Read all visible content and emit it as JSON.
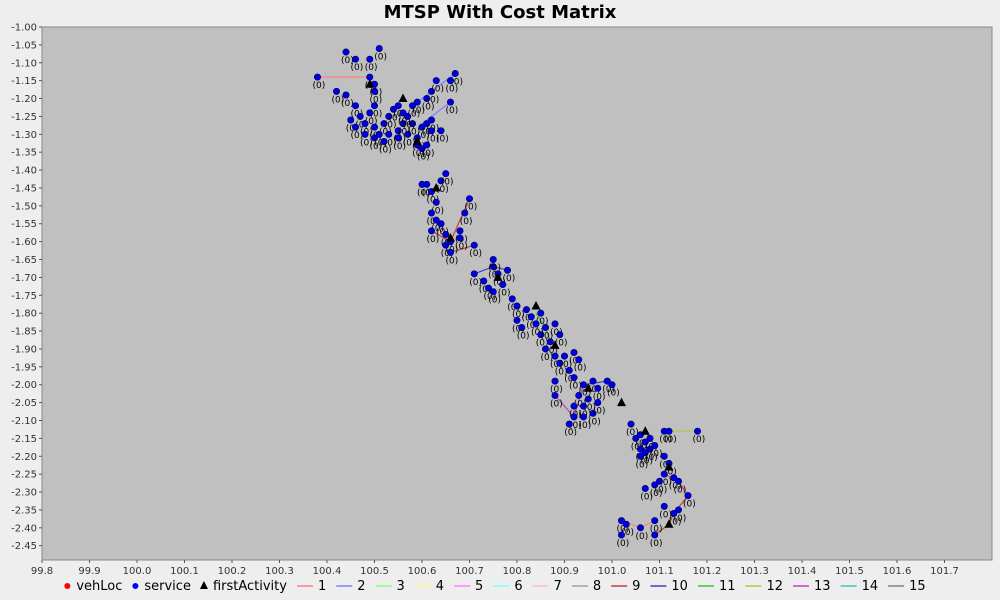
{
  "chart_data": {
    "type": "scatter",
    "title": "MTSP With Cost Matrix",
    "xlabel": "",
    "ylabel": "",
    "xlim": [
      99.8,
      101.8
    ],
    "ylim": [
      -2.49,
      -1.0
    ],
    "x_ticks": [
      "99.8",
      "99.9",
      "100.0",
      "100.1",
      "100.2",
      "100.3",
      "100.4",
      "100.5",
      "100.6",
      "100.7",
      "100.8",
      "100.9",
      "101.0",
      "101.1",
      "101.2",
      "101.3",
      "101.4",
      "101.5",
      "101.6",
      "101.7"
    ],
    "y_ticks": [
      "-1.00",
      "-1.05",
      "-1.10",
      "-1.15",
      "-1.20",
      "-1.25",
      "-1.30",
      "-1.35",
      "-1.40",
      "-1.45",
      "-1.50",
      "-1.55",
      "-1.60",
      "-1.65",
      "-1.70",
      "-1.75",
      "-1.80",
      "-1.85",
      "-1.90",
      "-1.95",
      "-2.00",
      "-2.05",
      "-2.10",
      "-2.15",
      "-2.20",
      "-2.25",
      "-2.30",
      "-2.35",
      "-2.40",
      "-2.45"
    ],
    "point_label": "(0)",
    "grid": false,
    "legend_position": "bottom",
    "legend": [
      {
        "label": "vehLoc",
        "kind": "dot",
        "color": "#ff0000"
      },
      {
        "label": "service",
        "kind": "dot",
        "color": "#0000ff"
      },
      {
        "label": "firstActivity",
        "kind": "triangle",
        "color": "#000000"
      },
      {
        "label": "1",
        "kind": "line",
        "color": "#ff8080"
      },
      {
        "label": "2",
        "kind": "line",
        "color": "#8080ff"
      },
      {
        "label": "3",
        "kind": "line",
        "color": "#80ff80"
      },
      {
        "label": "4",
        "kind": "line",
        "color": "#ffff80"
      },
      {
        "label": "5",
        "kind": "line",
        "color": "#ff80ff"
      },
      {
        "label": "6",
        "kind": "line",
        "color": "#80ffff"
      },
      {
        "label": "7",
        "kind": "line",
        "color": "#ffc0c0"
      },
      {
        "label": "8",
        "kind": "line",
        "color": "#a0a0a0"
      },
      {
        "label": "9",
        "kind": "line",
        "color": "#c04040"
      },
      {
        "label": "10",
        "kind": "line",
        "color": "#4040c0"
      },
      {
        "label": "11",
        "kind": "line",
        "color": "#40c040"
      },
      {
        "label": "12",
        "kind": "line",
        "color": "#c0c040"
      },
      {
        "label": "13",
        "kind": "line",
        "color": "#c040c0"
      },
      {
        "label": "14",
        "kind": "line",
        "color": "#40c0c0"
      },
      {
        "label": "15",
        "kind": "line",
        "color": "#808080"
      }
    ],
    "service": [
      [
        100.38,
        -1.14
      ],
      [
        100.42,
        -1.18
      ],
      [
        100.44,
        -1.07
      ],
      [
        100.46,
        -1.09
      ],
      [
        100.44,
        -1.19
      ],
      [
        100.49,
        -1.09
      ],
      [
        100.51,
        -1.06
      ],
      [
        100.49,
        -1.14
      ],
      [
        100.5,
        -1.16
      ],
      [
        100.5,
        -1.18
      ],
      [
        100.46,
        -1.22
      ],
      [
        100.5,
        -1.22
      ],
      [
        100.47,
        -1.25
      ],
      [
        100.49,
        -1.24
      ],
      [
        100.45,
        -1.26
      ],
      [
        100.46,
        -1.28
      ],
      [
        100.48,
        -1.27
      ],
      [
        100.5,
        -1.28
      ],
      [
        100.52,
        -1.27
      ],
      [
        100.53,
        -1.25
      ],
      [
        100.54,
        -1.23
      ],
      [
        100.55,
        -1.22
      ],
      [
        100.53,
        -1.3
      ],
      [
        100.55,
        -1.29
      ],
      [
        100.56,
        -1.27
      ],
      [
        100.57,
        -1.3
      ],
      [
        100.58,
        -1.22
      ],
      [
        100.59,
        -1.21
      ],
      [
        100.61,
        -1.2
      ],
      [
        100.62,
        -1.18
      ],
      [
        100.63,
        -1.15
      ],
      [
        100.67,
        -1.13
      ],
      [
        100.66,
        -1.15
      ],
      [
        100.66,
        -1.21
      ],
      [
        100.58,
        -1.27
      ],
      [
        100.6,
        -1.28
      ],
      [
        100.61,
        -1.27
      ],
      [
        100.62,
        -1.26
      ],
      [
        100.62,
        -1.29
      ],
      [
        100.64,
        -1.29
      ],
      [
        100.59,
        -1.31
      ],
      [
        100.59,
        -1.33
      ],
      [
        100.6,
        -1.34
      ],
      [
        100.61,
        -1.33
      ],
      [
        100.5,
        -1.31
      ],
      [
        100.51,
        -1.3
      ],
      [
        100.48,
        -1.3
      ],
      [
        100.52,
        -1.32
      ],
      [
        100.55,
        -1.31
      ],
      [
        100.57,
        -1.25
      ],
      [
        100.56,
        -1.24
      ],
      [
        100.6,
        -1.44
      ],
      [
        100.61,
        -1.44
      ],
      [
        100.62,
        -1.46
      ],
      [
        100.64,
        -1.43
      ],
      [
        100.65,
        -1.41
      ],
      [
        100.63,
        -1.49
      ],
      [
        100.62,
        -1.52
      ],
      [
        100.63,
        -1.54
      ],
      [
        100.62,
        -1.57
      ],
      [
        100.64,
        -1.55
      ],
      [
        100.65,
        -1.58
      ],
      [
        100.66,
        -1.6
      ],
      [
        100.65,
        -1.61
      ],
      [
        100.68,
        -1.57
      ],
      [
        100.69,
        -1.52
      ],
      [
        100.7,
        -1.48
      ],
      [
        100.68,
        -1.59
      ],
      [
        100.71,
        -1.61
      ],
      [
        100.66,
        -1.63
      ],
      [
        100.71,
        -1.69
      ],
      [
        100.73,
        -1.71
      ],
      [
        100.74,
        -1.73
      ],
      [
        100.75,
        -1.67
      ],
      [
        100.76,
        -1.69
      ],
      [
        100.75,
        -1.65
      ],
      [
        100.78,
        -1.68
      ],
      [
        100.75,
        -1.74
      ],
      [
        100.77,
        -1.72
      ],
      [
        100.79,
        -1.76
      ],
      [
        100.8,
        -1.78
      ],
      [
        100.82,
        -1.79
      ],
      [
        100.8,
        -1.82
      ],
      [
        100.81,
        -1.84
      ],
      [
        100.83,
        -1.81
      ],
      [
        100.85,
        -1.8
      ],
      [
        100.84,
        -1.83
      ],
      [
        100.85,
        -1.86
      ],
      [
        100.86,
        -1.84
      ],
      [
        100.87,
        -1.88
      ],
      [
        100.88,
        -1.83
      ],
      [
        100.89,
        -1.86
      ],
      [
        100.86,
        -1.9
      ],
      [
        100.88,
        -1.92
      ],
      [
        100.89,
        -1.94
      ],
      [
        100.9,
        -1.92
      ],
      [
        100.92,
        -1.91
      ],
      [
        100.93,
        -1.93
      ],
      [
        100.88,
        -1.99
      ],
      [
        100.91,
        -1.96
      ],
      [
        100.92,
        -1.98
      ],
      [
        100.94,
        -2.0
      ],
      [
        100.96,
        -1.99
      ],
      [
        100.97,
        -2.01
      ],
      [
        100.99,
        -1.99
      ],
      [
        101.0,
        -2.0
      ],
      [
        100.93,
        -2.03
      ],
      [
        100.95,
        -2.04
      ],
      [
        100.92,
        -2.06
      ],
      [
        100.94,
        -2.06
      ],
      [
        100.96,
        -2.08
      ],
      [
        100.97,
        -2.05
      ],
      [
        100.92,
        -2.09
      ],
      [
        100.94,
        -2.09
      ],
      [
        100.91,
        -2.11
      ],
      [
        100.88,
        -2.03
      ],
      [
        101.04,
        -2.11
      ],
      [
        101.05,
        -2.15
      ],
      [
        101.06,
        -2.14
      ],
      [
        101.07,
        -2.16
      ],
      [
        101.08,
        -2.15
      ],
      [
        101.11,
        -2.13
      ],
      [
        101.12,
        -2.13
      ],
      [
        101.18,
        -2.13
      ],
      [
        101.06,
        -2.18
      ],
      [
        101.07,
        -2.19
      ],
      [
        101.08,
        -2.18
      ],
      [
        101.09,
        -2.17
      ],
      [
        101.06,
        -2.2
      ],
      [
        101.11,
        -2.2
      ],
      [
        101.12,
        -2.22
      ],
      [
        101.13,
        -2.26
      ],
      [
        101.11,
        -2.25
      ],
      [
        101.1,
        -2.27
      ],
      [
        101.09,
        -2.28
      ],
      [
        101.07,
        -2.29
      ],
      [
        101.14,
        -2.27
      ],
      [
        101.16,
        -2.31
      ],
      [
        101.14,
        -2.35
      ],
      [
        101.13,
        -2.36
      ],
      [
        101.11,
        -2.34
      ],
      [
        101.02,
        -2.38
      ],
      [
        101.03,
        -2.39
      ],
      [
        101.02,
        -2.42
      ],
      [
        101.06,
        -2.4
      ],
      [
        101.09,
        -2.38
      ],
      [
        101.09,
        -2.42
      ]
    ],
    "firstActivity": [
      [
        100.49,
        -1.16
      ],
      [
        100.56,
        -1.2
      ],
      [
        100.59,
        -1.32
      ],
      [
        100.63,
        -1.45
      ],
      [
        100.66,
        -1.59
      ],
      [
        100.76,
        -1.7
      ],
      [
        100.84,
        -1.78
      ],
      [
        100.88,
        -1.89
      ],
      [
        100.95,
        -2.01
      ],
      [
        101.02,
        -2.05
      ],
      [
        101.07,
        -2.13
      ],
      [
        101.12,
        -2.23
      ],
      [
        101.12,
        -2.39
      ]
    ],
    "routes": [
      {
        "series": "1",
        "path": [
          [
            100.38,
            -1.14
          ],
          [
            100.49,
            -1.14
          ],
          [
            100.5,
            -1.16
          ]
        ]
      },
      {
        "series": "2",
        "path": [
          [
            100.59,
            -1.21
          ],
          [
            100.62,
            -1.18
          ],
          [
            100.67,
            -1.13
          ]
        ]
      },
      {
        "series": "2",
        "path": [
          [
            100.6,
            -1.27
          ],
          [
            100.66,
            -1.21
          ]
        ]
      },
      {
        "series": "9",
        "path": [
          [
            100.62,
            -1.57
          ],
          [
            100.66,
            -1.6
          ],
          [
            100.7,
            -1.48
          ]
        ]
      },
      {
        "series": "9",
        "path": [
          [
            100.66,
            -1.63
          ],
          [
            100.71,
            -1.61
          ]
        ]
      },
      {
        "series": "10",
        "path": [
          [
            100.71,
            -1.69
          ],
          [
            100.75,
            -1.67
          ],
          [
            100.78,
            -1.68
          ]
        ]
      },
      {
        "series": "11",
        "path": [
          [
            100.84,
            -1.8
          ],
          [
            100.86,
            -1.84
          ],
          [
            100.87,
            -1.88
          ]
        ]
      },
      {
        "series": "13",
        "path": [
          [
            100.88,
            -2.03
          ],
          [
            100.92,
            -2.09
          ],
          [
            100.94,
            -2.0
          ]
        ]
      },
      {
        "series": "10",
        "path": [
          [
            100.94,
            -2.0
          ],
          [
            100.99,
            -1.99
          ],
          [
            101.0,
            -2.0
          ]
        ]
      },
      {
        "series": "12",
        "path": [
          [
            101.11,
            -2.13
          ],
          [
            101.18,
            -2.13
          ]
        ]
      },
      {
        "series": "10",
        "path": [
          [
            101.06,
            -2.18
          ],
          [
            101.09,
            -2.17
          ],
          [
            101.07,
            -2.13
          ]
        ]
      },
      {
        "series": "9",
        "path": [
          [
            101.11,
            -2.25
          ],
          [
            101.14,
            -2.27
          ],
          [
            101.16,
            -2.31
          ],
          [
            101.13,
            -2.36
          ],
          [
            101.12,
            -2.39
          ],
          [
            101.09,
            -2.42
          ]
        ]
      },
      {
        "series": "1",
        "path": [
          [
            101.02,
            -2.38
          ],
          [
            101.06,
            -2.4
          ],
          [
            101.09,
            -2.38
          ]
        ]
      }
    ]
  }
}
